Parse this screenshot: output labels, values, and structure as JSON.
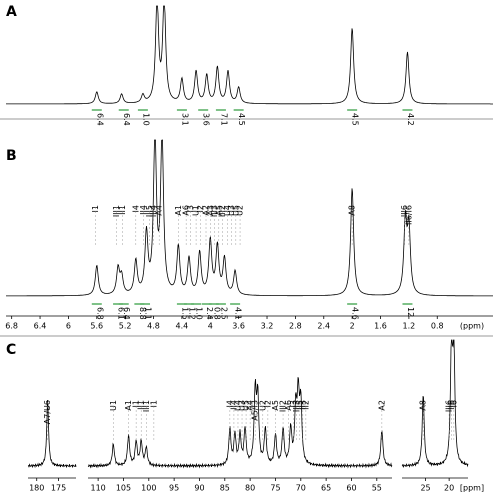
{
  "chart_data": [
    {
      "type": "spectrum",
      "label": "A",
      "xlim": [
        6.88,
        0.0
      ],
      "peaks": [
        {
          "x": 5.6,
          "h": 0.15
        },
        {
          "x": 5.25,
          "h": 0.12
        },
        {
          "x": 4.95,
          "h": 0.1
        },
        {
          "x": 4.75,
          "h": 1.3
        },
        {
          "x": 4.65,
          "h": 1.3
        },
        {
          "x": 4.4,
          "h": 0.3
        },
        {
          "x": 4.2,
          "h": 0.4
        },
        {
          "x": 4.05,
          "h": 0.35
        },
        {
          "x": 3.9,
          "h": 0.45
        },
        {
          "x": 3.75,
          "h": 0.4
        },
        {
          "x": 3.6,
          "h": 0.2
        },
        {
          "x": 2.0,
          "h": 0.95
        },
        {
          "x": 1.22,
          "h": 0.65
        }
      ],
      "integrals": [
        {
          "x": 5.6,
          "label": "6.4"
        },
        {
          "x": 5.22,
          "label": "6.4"
        },
        {
          "x": 4.95,
          "label": "1.0"
        },
        {
          "x": 4.4,
          "label": "3.1"
        },
        {
          "x": 4.1,
          "label": "3.6"
        },
        {
          "x": 3.85,
          "label": "7.1"
        },
        {
          "x": 3.6,
          "label": "4.5"
        },
        {
          "x": 2.0,
          "label": "4.5"
        },
        {
          "x": 1.22,
          "label": "4.2"
        }
      ]
    },
    {
      "type": "spectrum",
      "label": "B",
      "xlim": [
        6.88,
        0.0
      ],
      "xticks": [
        6.8,
        6.4,
        6.0,
        5.6,
        5.2,
        4.8,
        4.4,
        4.0,
        3.6,
        3.2,
        2.8,
        2.4,
        2.0,
        1.6,
        1.2,
        0.8
      ],
      "xunit": "(ppm)",
      "peaks": [
        {
          "x": 5.6,
          "h": 0.25
        },
        {
          "x": 5.3,
          "h": 0.22
        },
        {
          "x": 5.25,
          "h": 0.15
        },
        {
          "x": 5.05,
          "h": 0.28
        },
        {
          "x": 4.9,
          "h": 0.5
        },
        {
          "x": 4.78,
          "h": 1.3
        },
        {
          "x": 4.68,
          "h": 1.3
        },
        {
          "x": 4.45,
          "h": 0.4
        },
        {
          "x": 4.3,
          "h": 0.3
        },
        {
          "x": 4.15,
          "h": 0.35
        },
        {
          "x": 4.0,
          "h": 0.45
        },
        {
          "x": 3.9,
          "h": 0.4
        },
        {
          "x": 3.8,
          "h": 0.3
        },
        {
          "x": 3.65,
          "h": 0.2
        },
        {
          "x": 2.0,
          "h": 0.9
        },
        {
          "x": 1.25,
          "h": 0.6
        },
        {
          "x": 1.2,
          "h": 0.55
        }
      ],
      "labels": [
        {
          "x": 5.62,
          "text": "I1"
        },
        {
          "x": 5.32,
          "text": "III1"
        },
        {
          "x": 5.24,
          "text": "II1"
        },
        {
          "x": 5.05,
          "text": "I4"
        },
        {
          "x": 4.94,
          "text": "II4"
        },
        {
          "x": 4.86,
          "text": "III5"
        },
        {
          "x": 4.8,
          "text": "III4"
        },
        {
          "x": 4.72,
          "text": "A4"
        },
        {
          "x": 4.45,
          "text": "A1"
        },
        {
          "x": 4.34,
          "text": "A6"
        },
        {
          "x": 4.28,
          "text": "I3"
        },
        {
          "x": 4.2,
          "text": "U1"
        },
        {
          "x": 4.14,
          "text": "I2"
        },
        {
          "x": 4.06,
          "text": "A2"
        },
        {
          "x": 4.0,
          "text": "A3"
        },
        {
          "x": 3.94,
          "text": "III3"
        },
        {
          "x": 3.88,
          "text": "A5"
        },
        {
          "x": 3.83,
          "text": "III2"
        },
        {
          "x": 3.76,
          "text": "U4"
        },
        {
          "x": 3.7,
          "text": "U3"
        },
        {
          "x": 3.64,
          "text": "U5"
        },
        {
          "x": 3.58,
          "text": "U2"
        },
        {
          "x": 2.0,
          "text": "A8"
        },
        {
          "x": 1.26,
          "text": "III6"
        },
        {
          "x": 1.2,
          "text": "II6/I6"
        }
      ],
      "integrals": [
        {
          "x": 5.6,
          "label": "6.8"
        },
        {
          "x": 5.3,
          "label": "6.1"
        },
        {
          "x": 5.22,
          "label": "6.4"
        },
        {
          "x": 5.0,
          "label": "8.8"
        },
        {
          "x": 4.92,
          "label": "1.1"
        },
        {
          "x": 4.4,
          "label": "1.5"
        },
        {
          "x": 4.3,
          "label": "1.2"
        },
        {
          "x": 4.2,
          "label": "1.0"
        },
        {
          "x": 4.05,
          "label": "2.4"
        },
        {
          "x": 3.95,
          "label": "0.8"
        },
        {
          "x": 3.85,
          "label": "2.5"
        },
        {
          "x": 3.65,
          "label": "4.1"
        },
        {
          "x": 2.0,
          "label": "4.6"
        },
        {
          "x": 1.22,
          "label": "12"
        }
      ]
    },
    {
      "type": "spectrum",
      "label": "C",
      "segments": [
        {
          "xlim": [
            182,
            171
          ]
        },
        {
          "xlim": [
            112,
            52
          ]
        },
        {
          "xlim": [
            30,
            16
          ]
        }
      ],
      "xticks": [
        180,
        175,
        110,
        105,
        100,
        95,
        90,
        85,
        80,
        75,
        70,
        65,
        60,
        55,
        25,
        20
      ],
      "xunit": "[ppm]",
      "peaks": [
        {
          "x": 177.5,
          "h": 0.55
        },
        {
          "x": 107,
          "h": 0.18
        },
        {
          "x": 104,
          "h": 0.25
        },
        {
          "x": 102.5,
          "h": 0.2
        },
        {
          "x": 101.5,
          "h": 0.2
        },
        {
          "x": 100.5,
          "h": 0.15
        },
        {
          "x": 84,
          "h": 0.3
        },
        {
          "x": 83,
          "h": 0.25
        },
        {
          "x": 82,
          "h": 0.25
        },
        {
          "x": 81,
          "h": 0.3
        },
        {
          "x": 79,
          "h": 0.6
        },
        {
          "x": 78.5,
          "h": 0.55
        },
        {
          "x": 77,
          "h": 0.3
        },
        {
          "x": 75,
          "h": 0.25
        },
        {
          "x": 73.5,
          "h": 0.3
        },
        {
          "x": 72,
          "h": 0.3
        },
        {
          "x": 71,
          "h": 0.45
        },
        {
          "x": 70.5,
          "h": 0.55
        },
        {
          "x": 70,
          "h": 0.5
        },
        {
          "x": 54,
          "h": 0.3
        },
        {
          "x": 25.5,
          "h": 0.6
        },
        {
          "x": 19.5,
          "h": 1.0
        },
        {
          "x": 19,
          "h": 0.95
        }
      ],
      "labels": [
        {
          "x": 177.5,
          "text": "A7/U6"
        },
        {
          "x": 107,
          "text": "U1"
        },
        {
          "x": 104,
          "text": "A1"
        },
        {
          "x": 102.5,
          "text": "I1"
        },
        {
          "x": 101.5,
          "text": "II1"
        },
        {
          "x": 100.5,
          "text": "III1"
        },
        {
          "x": 99,
          "text": "I1"
        },
        {
          "x": 84,
          "text": "I4"
        },
        {
          "x": 83.2,
          "text": "II4"
        },
        {
          "x": 82.4,
          "text": "U4"
        },
        {
          "x": 81.6,
          "text": "U3"
        },
        {
          "x": 80.8,
          "text": "U5"
        },
        {
          "x": 80,
          "text": "A4"
        },
        {
          "x": 79,
          "text": "A5/I3"
        },
        {
          "x": 77.5,
          "text": "U2"
        },
        {
          "x": 76.5,
          "text": "I2"
        },
        {
          "x": 75,
          "text": "A5"
        },
        {
          "x": 73.5,
          "text": "III2"
        },
        {
          "x": 72.4,
          "text": "A6"
        },
        {
          "x": 71.4,
          "text": "I3"
        },
        {
          "x": 70.8,
          "text": "III3"
        },
        {
          "x": 70.2,
          "text": "II5"
        },
        {
          "x": 69.6,
          "text": "II3"
        },
        {
          "x": 69,
          "text": "II2"
        },
        {
          "x": 54,
          "text": "A2"
        },
        {
          "x": 25.5,
          "text": "A8"
        },
        {
          "x": 20,
          "text": "III6"
        },
        {
          "x": 19.5,
          "text": "II6"
        },
        {
          "x": 19,
          "text": "I6"
        }
      ]
    }
  ]
}
